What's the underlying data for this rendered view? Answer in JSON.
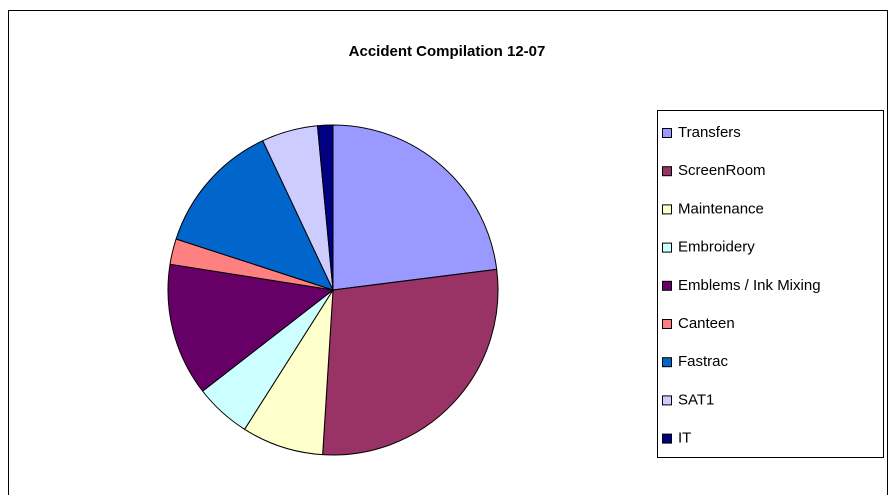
{
  "chart_data": {
    "type": "pie",
    "title": "Accident Compilation 12-07",
    "categories": [
      "Transfers",
      "ScreenRoom",
      "Maintenance",
      "Embroidery",
      "Emblems / Ink Mixing",
      "Canteen",
      "Fastrac",
      "SAT1",
      "IT"
    ],
    "values": [
      23,
      28,
      8,
      5.5,
      13,
      2.5,
      13,
      5.5,
      1.5
    ],
    "colors": [
      "#9999ff",
      "#993366",
      "#ffffcc",
      "#ccffff",
      "#660066",
      "#ff8080",
      "#0066cc",
      "#ccccff",
      "#000080"
    ],
    "legend": "right"
  }
}
